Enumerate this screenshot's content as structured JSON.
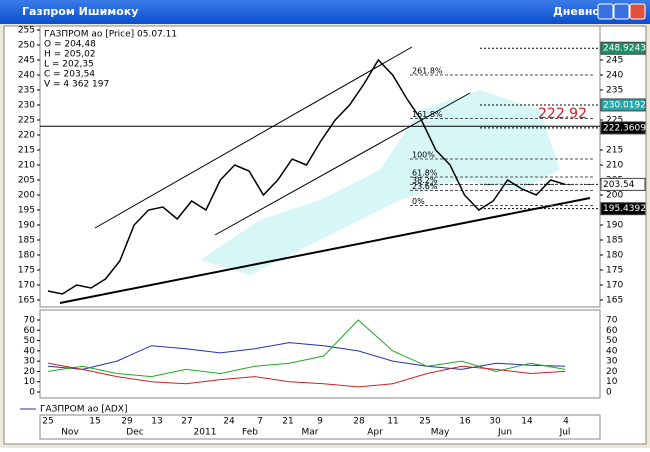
{
  "window": {
    "title": "Газпром Ишимоку",
    "mode": "Дневной"
  },
  "info": {
    "lines": [
      "ГАЗПРОМ ао [Price] 05.07.11",
      "O = 204,48",
      "H = 205,02",
      "L = 202,35",
      "C = 203,54",
      "V = 4 362 197"
    ]
  },
  "price_chart": {
    "ylim": [
      165,
      255
    ],
    "left_ticks": [
      255,
      250,
      245,
      240,
      235,
      230,
      225,
      220,
      215,
      210,
      205,
      200,
      195,
      190,
      185,
      180,
      175,
      170,
      165
    ],
    "right_ticks": [
      245,
      240,
      235,
      225,
      215,
      210,
      205,
      200,
      190,
      185,
      180,
      175,
      170,
      165
    ],
    "right_labels": [
      {
        "value": 248.9243,
        "label": "248.9243",
        "color": "#1f8f6a"
      },
      {
        "value": 230.0192,
        "label": "230.0192",
        "color": "#2aa6a6"
      },
      {
        "value": 222.3609,
        "label": "222.3609",
        "color": "#000000"
      },
      {
        "value": 203.54,
        "label": "203.54",
        "color": "#ffffff"
      },
      {
        "value": 195.4392,
        "label": "195.4392",
        "color": "#000000"
      }
    ],
    "annotation": {
      "value": 222.92,
      "label": "222.92"
    },
    "fib_levels": [
      {
        "value": 240,
        "label": "261.8%"
      },
      {
        "value": 225.5,
        "label": "161.8%"
      },
      {
        "value": 212,
        "label": "100%"
      },
      {
        "value": 206,
        "label": "61.8%"
      },
      {
        "value": 203.5,
        "label": "38.2%"
      },
      {
        "value": 201.5,
        "label": "23.6%"
      },
      {
        "value": 196.5,
        "label": "0%"
      }
    ],
    "close": [
      168,
      167,
      170,
      169,
      172,
      178,
      190,
      195,
      196,
      192,
      198,
      195,
      205,
      210,
      208,
      200,
      205,
      212,
      210,
      218,
      225,
      230,
      237,
      245,
      240,
      232,
      225,
      215,
      210,
      200,
      195,
      198,
      205,
      202,
      200,
      205,
      203.54
    ],
    "color": "#000000"
  },
  "adx_chart": {
    "legend": "ГАЗПРОМ ао [ADX]",
    "ylim": [
      0,
      70
    ],
    "yticks": [
      70,
      60,
      50,
      40,
      30,
      20,
      10,
      0
    ],
    "series": [
      {
        "color": "#2233aa",
        "values": [
          25,
          22,
          30,
          45,
          42,
          38,
          42,
          48,
          45,
          40,
          30,
          25,
          22,
          28,
          26,
          25
        ]
      },
      {
        "color": "#22aa22",
        "values": [
          20,
          25,
          18,
          15,
          22,
          18,
          25,
          28,
          35,
          70,
          40,
          25,
          30,
          20,
          28,
          22
        ]
      },
      {
        "color": "#cc2222",
        "values": [
          28,
          22,
          15,
          10,
          8,
          12,
          15,
          10,
          8,
          5,
          8,
          18,
          25,
          22,
          18,
          20
        ]
      }
    ]
  },
  "date_axis": {
    "days": [
      "25",
      "15",
      "29",
      "13",
      "27",
      "24",
      "7",
      "21",
      "9",
      "28",
      "11",
      "25",
      "16",
      "30",
      "14",
      "4"
    ],
    "months": [
      "Nov",
      "Dec",
      "2011",
      "Feb",
      "Mar",
      "Apr",
      "May",
      "Jun",
      "Jul"
    ]
  }
}
